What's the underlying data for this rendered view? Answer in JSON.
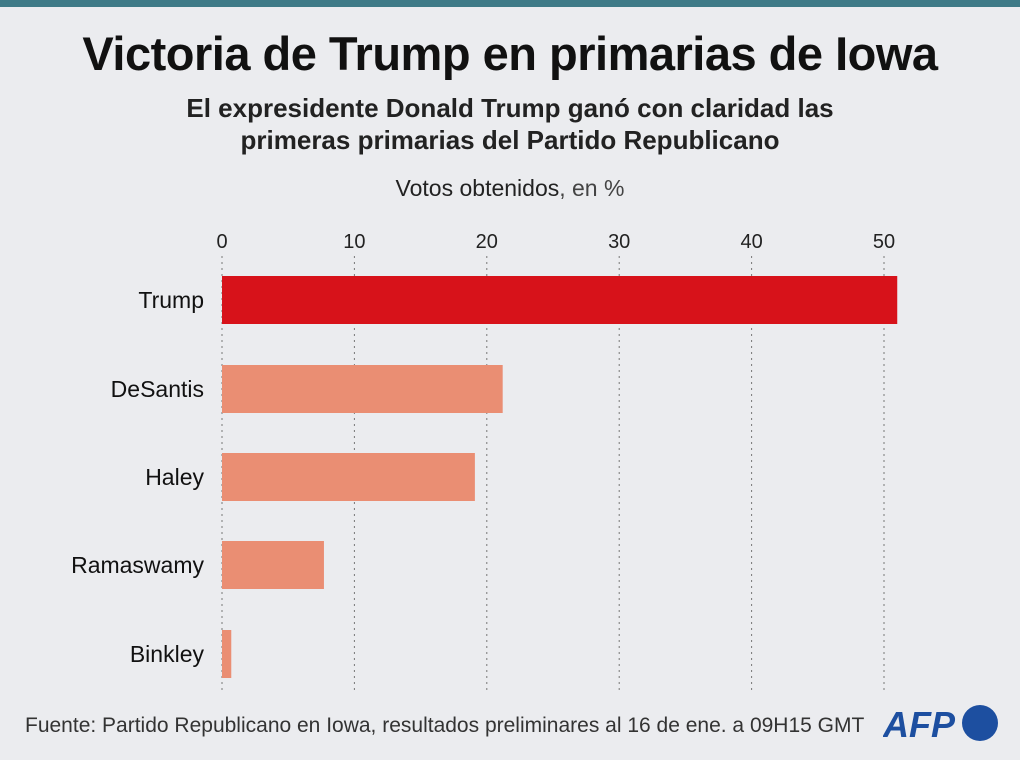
{
  "header": {
    "title": "Victoria de Trump en primarias de Iowa",
    "subtitle_line1": "El expresidente Donald Trump ganó con claridad las",
    "subtitle_line2": "primeras primarias del Partido Republicano"
  },
  "chart_data": {
    "type": "bar",
    "orientation": "horizontal",
    "xlabel": "Votos obtenidos",
    "xlabel_unit": ", en %",
    "xlim": [
      0,
      50
    ],
    "ticks": [
      0,
      10,
      20,
      30,
      40,
      50
    ],
    "tick_labels": [
      "0",
      "10",
      "20",
      "30",
      "40",
      "50"
    ],
    "grid": "vertical dotted",
    "categories": [
      "Trump",
      "DeSantis",
      "Haley",
      "Ramaswamy",
      "Binkley"
    ],
    "values": [
      51.0,
      21.2,
      19.1,
      7.7,
      0.7
    ],
    "colors": [
      "#d7121a",
      "#ea8e73",
      "#ea8e73",
      "#ea8e73",
      "#ea8e73"
    ]
  },
  "footer": {
    "source": "Fuente: Partido Republicano en Iowa, resultados preliminares al 16 de ene. a 09H15 GMT",
    "logo": "AFP"
  },
  "colors": {
    "accent_bar": "#3e7a87",
    "background": "#ebecef",
    "logo": "#1d4fa0"
  }
}
